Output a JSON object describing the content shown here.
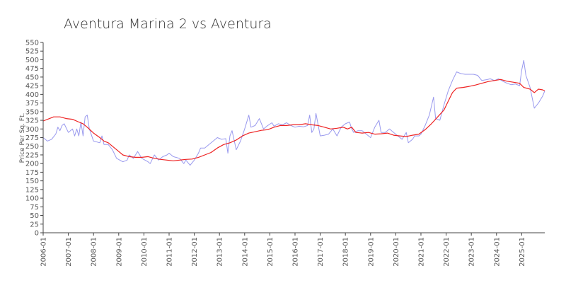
{
  "chart_data": {
    "type": "line",
    "title": "Aventura Marina 2 vs Aventura",
    "xlabel": "",
    "ylabel": "Price Per Sq. Ft.",
    "xlim": [
      "2006-01",
      "2025-12"
    ],
    "ylim": [
      0,
      550
    ],
    "grid": false,
    "legend": "none",
    "x_tick_labels": [
      "2006-01",
      "2007-01",
      "2008-01",
      "2009-01",
      "2010-01",
      "2011-01",
      "2012-01",
      "2013-01",
      "2014-01",
      "2015-01",
      "2016-01",
      "2017-01",
      "2018-01",
      "2019-01",
      "2020-01",
      "2021-01",
      "2022-01",
      "2023-01",
      "2024-01",
      "2025-01"
    ],
    "y_ticks": [
      0,
      25,
      50,
      75,
      100,
      125,
      150,
      175,
      200,
      225,
      250,
      275,
      300,
      325,
      350,
      375,
      400,
      425,
      450,
      475,
      500,
      525,
      550
    ],
    "series": [
      {
        "color": "#9999ee",
        "points": [
          [
            "2006-01",
            275
          ],
          [
            "2006-03",
            265
          ],
          [
            "2006-05",
            270
          ],
          [
            "2006-07",
            285
          ],
          [
            "2006-08",
            305
          ],
          [
            "2006-09",
            295
          ],
          [
            "2006-10",
            310
          ],
          [
            "2006-11",
            315
          ],
          [
            "2007-01",
            290
          ],
          [
            "2007-03",
            300
          ],
          [
            "2007-04",
            280
          ],
          [
            "2007-05",
            300
          ],
          [
            "2007-06",
            280
          ],
          [
            "2007-07",
            320
          ],
          [
            "2007-08",
            280
          ],
          [
            "2007-09",
            335
          ],
          [
            "2007-10",
            340
          ],
          [
            "2007-11",
            300
          ],
          [
            "2008-01",
            265
          ],
          [
            "2008-04",
            260
          ],
          [
            "2008-05",
            280
          ],
          [
            "2008-06",
            255
          ],
          [
            "2008-08",
            255
          ],
          [
            "2008-10",
            240
          ],
          [
            "2008-12",
            215
          ],
          [
            "2009-03",
            205
          ],
          [
            "2009-05",
            210
          ],
          [
            "2009-06",
            225
          ],
          [
            "2009-08",
            215
          ],
          [
            "2009-10",
            235
          ],
          [
            "2009-12",
            215
          ],
          [
            "2010-03",
            205
          ],
          [
            "2010-04",
            200
          ],
          [
            "2010-06",
            225
          ],
          [
            "2010-08",
            210
          ],
          [
            "2010-10",
            220
          ],
          [
            "2010-12",
            225
          ],
          [
            "2011-01",
            230
          ],
          [
            "2011-03",
            220
          ],
          [
            "2011-06",
            215
          ],
          [
            "2011-08",
            200
          ],
          [
            "2011-09",
            210
          ],
          [
            "2011-11",
            195
          ],
          [
            "2012-01",
            210
          ],
          [
            "2012-03",
            230
          ],
          [
            "2012-04",
            245
          ],
          [
            "2012-06",
            245
          ],
          [
            "2012-08",
            255
          ],
          [
            "2012-10",
            265
          ],
          [
            "2012-12",
            275
          ],
          [
            "2013-02",
            270
          ],
          [
            "2013-04",
            272
          ],
          [
            "2013-05",
            230
          ],
          [
            "2013-06",
            280
          ],
          [
            "2013-07",
            295
          ],
          [
            "2013-09",
            240
          ],
          [
            "2013-11",
            265
          ],
          [
            "2014-01",
            300
          ],
          [
            "2014-03",
            340
          ],
          [
            "2014-04",
            305
          ],
          [
            "2014-06",
            310
          ],
          [
            "2014-08",
            330
          ],
          [
            "2014-10",
            300
          ],
          [
            "2014-12",
            310
          ],
          [
            "2015-02",
            318
          ],
          [
            "2015-03",
            308
          ],
          [
            "2015-05",
            315
          ],
          [
            "2015-07",
            312
          ],
          [
            "2015-09",
            318
          ],
          [
            "2015-11",
            310
          ],
          [
            "2016-01",
            305
          ],
          [
            "2016-03",
            308
          ],
          [
            "2016-05",
            306
          ],
          [
            "2016-07",
            310
          ],
          [
            "2016-08",
            340
          ],
          [
            "2016-09",
            290
          ],
          [
            "2016-10",
            300
          ],
          [
            "2016-11",
            345
          ],
          [
            "2017-01",
            280
          ],
          [
            "2017-03",
            282
          ],
          [
            "2017-05",
            285
          ],
          [
            "2017-07",
            300
          ],
          [
            "2017-09",
            280
          ],
          [
            "2017-11",
            305
          ],
          [
            "2018-01",
            315
          ],
          [
            "2018-03",
            320
          ],
          [
            "2018-04",
            300
          ],
          [
            "2018-05",
            290
          ],
          [
            "2018-07",
            295
          ],
          [
            "2018-09",
            295
          ],
          [
            "2018-11",
            285
          ],
          [
            "2019-01",
            275
          ],
          [
            "2019-03",
            305
          ],
          [
            "2019-05",
            325
          ],
          [
            "2019-06",
            290
          ],
          [
            "2019-08",
            290
          ],
          [
            "2019-10",
            300
          ],
          [
            "2019-12",
            290
          ],
          [
            "2020-02",
            280
          ],
          [
            "2020-04",
            270
          ],
          [
            "2020-06",
            290
          ],
          [
            "2020-07",
            260
          ],
          [
            "2020-09",
            270
          ],
          [
            "2020-10",
            280
          ],
          [
            "2020-12",
            280
          ],
          [
            "2021-01",
            285
          ],
          [
            "2021-03",
            310
          ],
          [
            "2021-05",
            340
          ],
          [
            "2021-07",
            392
          ],
          [
            "2021-08",
            330
          ],
          [
            "2021-10",
            325
          ],
          [
            "2021-12",
            370
          ],
          [
            "2022-02",
            410
          ],
          [
            "2022-04",
            440
          ],
          [
            "2022-06",
            465
          ],
          [
            "2022-08",
            460
          ],
          [
            "2022-10",
            458
          ],
          [
            "2022-12",
            458
          ],
          [
            "2023-02",
            458
          ],
          [
            "2023-04",
            455
          ],
          [
            "2023-06",
            440
          ],
          [
            "2023-08",
            442
          ],
          [
            "2023-10",
            445
          ],
          [
            "2023-12",
            440
          ],
          [
            "2024-02",
            445
          ],
          [
            "2024-04",
            438
          ],
          [
            "2024-06",
            432
          ],
          [
            "2024-08",
            428
          ],
          [
            "2024-10",
            430
          ],
          [
            "2024-12",
            425
          ],
          [
            "2025-01",
            470
          ],
          [
            "2025-02",
            498
          ],
          [
            "2025-03",
            455
          ],
          [
            "2025-05",
            420
          ],
          [
            "2025-07",
            360
          ],
          [
            "2025-09",
            375
          ],
          [
            "2025-11",
            395
          ],
          [
            "2025-12",
            410
          ]
        ]
      },
      {
        "color": "#ee2222",
        "points": [
          [
            "2006-01",
            323
          ],
          [
            "2006-04",
            330
          ],
          [
            "2006-06",
            335
          ],
          [
            "2006-09",
            335
          ],
          [
            "2006-12",
            330
          ],
          [
            "2007-03",
            328
          ],
          [
            "2007-06",
            320
          ],
          [
            "2007-08",
            315
          ],
          [
            "2007-10",
            305
          ],
          [
            "2008-01",
            288
          ],
          [
            "2008-04",
            275
          ],
          [
            "2008-06",
            265
          ],
          [
            "2008-08",
            260
          ],
          [
            "2008-10",
            250
          ],
          [
            "2009-01",
            235
          ],
          [
            "2009-03",
            225
          ],
          [
            "2009-06",
            220
          ],
          [
            "2009-09",
            218
          ],
          [
            "2009-12",
            218
          ],
          [
            "2010-03",
            220
          ],
          [
            "2010-06",
            215
          ],
          [
            "2010-09",
            212
          ],
          [
            "2010-12",
            210
          ],
          [
            "2011-03",
            208
          ],
          [
            "2011-06",
            210
          ],
          [
            "2011-09",
            212
          ],
          [
            "2011-12",
            213
          ],
          [
            "2012-03",
            218
          ],
          [
            "2012-06",
            225
          ],
          [
            "2012-09",
            232
          ],
          [
            "2012-12",
            245
          ],
          [
            "2013-03",
            255
          ],
          [
            "2013-06",
            260
          ],
          [
            "2013-09",
            268
          ],
          [
            "2013-12",
            280
          ],
          [
            "2014-03",
            288
          ],
          [
            "2014-06",
            292
          ],
          [
            "2014-09",
            296
          ],
          [
            "2014-12",
            298
          ],
          [
            "2015-03",
            305
          ],
          [
            "2015-06",
            310
          ],
          [
            "2015-09",
            310
          ],
          [
            "2015-12",
            312
          ],
          [
            "2016-03",
            312
          ],
          [
            "2016-06",
            315
          ],
          [
            "2016-09",
            312
          ],
          [
            "2016-12",
            310
          ],
          [
            "2017-03",
            305
          ],
          [
            "2017-06",
            300
          ],
          [
            "2017-09",
            302
          ],
          [
            "2017-12",
            305
          ],
          [
            "2018-02",
            300
          ],
          [
            "2018-04",
            305
          ],
          [
            "2018-06",
            290
          ],
          [
            "2018-09",
            288
          ],
          [
            "2018-12",
            290
          ],
          [
            "2019-03",
            285
          ],
          [
            "2019-06",
            286
          ],
          [
            "2019-09",
            288
          ],
          [
            "2019-12",
            282
          ],
          [
            "2020-03",
            280
          ],
          [
            "2020-06",
            278
          ],
          [
            "2020-09",
            282
          ],
          [
            "2020-12",
            285
          ],
          [
            "2021-03",
            298
          ],
          [
            "2021-06",
            315
          ],
          [
            "2021-09",
            335
          ],
          [
            "2021-12",
            355
          ],
          [
            "2022-02",
            380
          ],
          [
            "2022-04",
            405
          ],
          [
            "2022-06",
            418
          ],
          [
            "2022-09",
            420
          ],
          [
            "2022-12",
            423
          ],
          [
            "2023-03",
            427
          ],
          [
            "2023-06",
            432
          ],
          [
            "2023-09",
            437
          ],
          [
            "2023-12",
            440
          ],
          [
            "2024-03",
            443
          ],
          [
            "2024-06",
            438
          ],
          [
            "2024-09",
            435
          ],
          [
            "2024-12",
            432
          ],
          [
            "2025-02",
            420
          ],
          [
            "2025-05",
            415
          ],
          [
            "2025-07",
            405
          ],
          [
            "2025-09",
            415
          ],
          [
            "2025-11",
            413
          ],
          [
            "2025-12",
            410
          ]
        ]
      }
    ]
  }
}
